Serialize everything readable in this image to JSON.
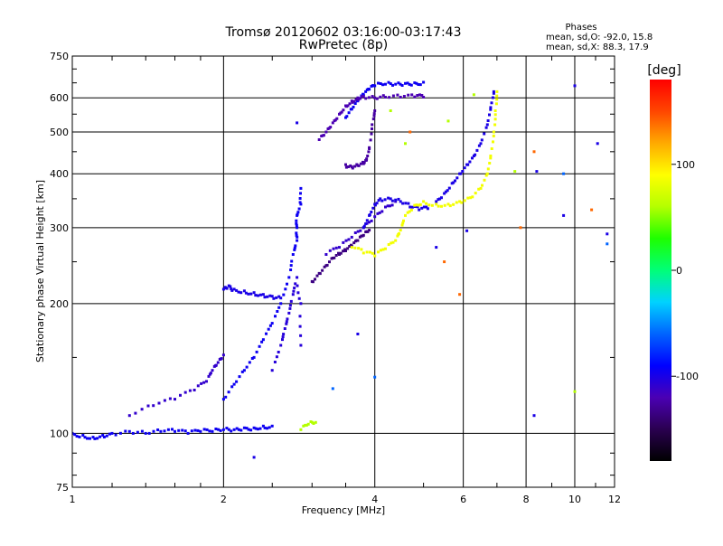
{
  "chart_data": {
    "type": "scatter",
    "title": "Tromsø 20120602 03:16:00-03:17:43",
    "subtitle": "RwPretec (8p)",
    "xlabel": "Frequency [MHz]",
    "ylabel": "Stationary phase Virtual Height [km]",
    "xscale": "log",
    "yscale": "log",
    "xlim": [
      1,
      12
    ],
    "ylim": [
      75,
      750
    ],
    "grid": true,
    "x_ticks": [
      {
        "value": 1,
        "label": "1"
      },
      {
        "value": 2,
        "label": "2"
      },
      {
        "value": 4,
        "label": "4"
      },
      {
        "value": 6,
        "label": "6"
      },
      {
        "value": 8,
        "label": "8"
      },
      {
        "value": 10,
        "label": "10"
      },
      {
        "value": 12,
        "label": "12"
      }
    ],
    "y_ticks": [
      {
        "value": 75,
        "label": "75"
      },
      {
        "value": 100,
        "label": "100"
      },
      {
        "value": 200,
        "label": "200"
      },
      {
        "value": 300,
        "label": "300"
      },
      {
        "value": 400,
        "label": "400"
      },
      {
        "value": 500,
        "label": "500"
      },
      {
        "value": 600,
        "label": "600"
      },
      {
        "value": 750,
        "label": "750"
      }
    ],
    "stats": {
      "header": "Phases",
      "line_o": "mean, sd,O: -92.0, 15.8",
      "line_x": "mean, sd,X:  88.3, 17.9"
    },
    "colorbar": {
      "label": "[deg]",
      "range": [
        -180,
        180
      ],
      "ticks": [
        {
          "value": 100,
          "label": "100"
        },
        {
          "value": 0,
          "label": "0"
        },
        {
          "value": -100,
          "label": "-100"
        }
      ],
      "colors": [
        "#000000",
        "#2a0050",
        "#4b00b4",
        "#0000ff",
        "#0064ff",
        "#00d2ff",
        "#00ff78",
        "#1eff00",
        "#b4ff00",
        "#ffff00",
        "#ffaa00",
        "#ff4600",
        "#ff0000"
      ]
    },
    "series": [
      {
        "phase": -95,
        "points": [
          [
            1.0,
            100
          ],
          [
            1.05,
            99
          ],
          [
            1.1,
            98
          ],
          [
            1.15,
            99
          ],
          [
            1.2,
            100
          ],
          [
            1.3,
            101
          ],
          [
            1.4,
            100
          ],
          [
            1.5,
            101
          ],
          [
            1.6,
            101
          ],
          [
            1.7,
            100
          ],
          [
            1.8,
            101
          ],
          [
            1.9,
            101
          ],
          [
            2.0,
            102
          ],
          [
            2.1,
            102
          ],
          [
            2.2,
            103
          ],
          [
            2.3,
            103
          ],
          [
            2.4,
            104
          ],
          [
            2.5,
            104
          ]
        ]
      },
      {
        "phase": -110,
        "points": [
          [
            1.3,
            110
          ],
          [
            1.45,
            116
          ],
          [
            1.6,
            120
          ],
          [
            1.75,
            126
          ],
          [
            1.85,
            132
          ],
          [
            1.9,
            140
          ],
          [
            1.95,
            146
          ],
          [
            2.0,
            152
          ]
        ]
      },
      {
        "phase": -100,
        "points": [
          [
            2.0,
            216
          ],
          [
            2.05,
            220
          ],
          [
            2.1,
            216
          ],
          [
            2.2,
            214
          ],
          [
            2.3,
            212
          ],
          [
            2.4,
            210
          ],
          [
            2.5,
            208
          ],
          [
            2.6,
            206
          ]
        ]
      },
      {
        "phase": -95,
        "points": [
          [
            2.0,
            120
          ],
          [
            2.1,
            130
          ],
          [
            2.2,
            140
          ],
          [
            2.3,
            150
          ],
          [
            2.4,
            165
          ],
          [
            2.5,
            180
          ],
          [
            2.6,
            200
          ],
          [
            2.7,
            230
          ],
          [
            2.75,
            260
          ],
          [
            2.8,
            280
          ],
          [
            2.8,
            300
          ],
          [
            2.8,
            320
          ],
          [
            2.85,
            340
          ],
          [
            2.85,
            370
          ]
        ]
      },
      {
        "phase": -105,
        "points": [
          [
            2.5,
            140
          ],
          [
            2.6,
            160
          ],
          [
            2.65,
            175
          ],
          [
            2.7,
            190
          ],
          [
            2.75,
            210
          ],
          [
            2.8,
            230
          ],
          [
            2.85,
            200
          ],
          [
            2.85,
            160
          ]
        ]
      },
      {
        "phase": -135,
        "points": [
          [
            3.0,
            225
          ],
          [
            3.1,
            235
          ],
          [
            3.2,
            245
          ],
          [
            3.3,
            255
          ],
          [
            3.4,
            260
          ],
          [
            3.5,
            265
          ],
          [
            3.6,
            272
          ],
          [
            3.7,
            280
          ],
          [
            3.8,
            288
          ],
          [
            3.9,
            296
          ]
        ]
      },
      {
        "phase": -110,
        "points": [
          [
            3.2,
            260
          ],
          [
            3.4,
            270
          ],
          [
            3.6,
            285
          ],
          [
            3.8,
            300
          ],
          [
            4.0,
            318
          ],
          [
            4.2,
            335
          ],
          [
            4.4,
            345
          ]
        ]
      },
      {
        "phase": -100,
        "points": [
          [
            3.8,
            300
          ],
          [
            3.9,
            320
          ],
          [
            4.0,
            340
          ],
          [
            4.1,
            350
          ],
          [
            4.3,
            350
          ],
          [
            4.5,
            345
          ],
          [
            4.7,
            335
          ],
          [
            4.9,
            330
          ],
          [
            5.1,
            332
          ]
        ]
      },
      {
        "phase": 85,
        "points": [
          [
            3.6,
            270
          ],
          [
            3.8,
            262
          ],
          [
            4.0,
            258
          ],
          [
            4.2,
            268
          ],
          [
            4.4,
            280
          ],
          [
            4.5,
            296
          ],
          [
            4.6,
            320
          ],
          [
            4.8,
            338
          ],
          [
            5.0,
            345
          ],
          [
            5.3,
            340
          ],
          [
            5.6,
            340
          ],
          [
            5.9,
            345
          ],
          [
            6.2,
            352
          ],
          [
            6.5,
            370
          ],
          [
            6.7,
            400
          ],
          [
            6.8,
            440
          ],
          [
            6.9,
            500
          ],
          [
            6.95,
            560
          ],
          [
            7.0,
            620
          ]
        ]
      },
      {
        "phase": -100,
        "points": [
          [
            5.3,
            345
          ],
          [
            5.5,
            360
          ],
          [
            5.7,
            380
          ],
          [
            5.9,
            400
          ],
          [
            6.1,
            420
          ],
          [
            6.3,
            440
          ],
          [
            6.5,
            470
          ],
          [
            6.7,
            520
          ],
          [
            6.8,
            570
          ],
          [
            6.9,
            620
          ]
        ]
      },
      {
        "phase": -95,
        "points": [
          [
            3.5,
            540
          ],
          [
            3.6,
            565
          ],
          [
            3.7,
            590
          ],
          [
            3.8,
            610
          ],
          [
            3.9,
            628
          ],
          [
            4.0,
            640
          ],
          [
            4.2,
            645
          ],
          [
            4.4,
            645
          ],
          [
            4.6,
            648
          ],
          [
            4.8,
            650
          ],
          [
            5.0,
            652
          ]
        ]
      },
      {
        "phase": -120,
        "points": [
          [
            3.1,
            480
          ],
          [
            3.2,
            500
          ],
          [
            3.3,
            525
          ],
          [
            3.4,
            550
          ],
          [
            3.5,
            575
          ],
          [
            3.6,
            590
          ],
          [
            3.7,
            600
          ],
          [
            3.8,
            605
          ],
          [
            4.0,
            600
          ],
          [
            4.2,
            602
          ],
          [
            4.5,
            602
          ],
          [
            4.8,
            603
          ],
          [
            5.0,
            602
          ]
        ]
      },
      {
        "phase": -125,
        "points": [
          [
            3.5,
            420
          ],
          [
            3.6,
            415
          ],
          [
            3.7,
            418
          ],
          [
            3.8,
            422
          ],
          [
            3.85,
            430
          ],
          [
            3.9,
            460
          ],
          [
            3.95,
            520
          ],
          [
            4.0,
            560
          ]
        ]
      },
      {
        "phase": 60,
        "points": [
          [
            2.85,
            102
          ],
          [
            2.95,
            105
          ],
          [
            3.05,
            106
          ]
        ]
      }
    ],
    "scatter_points": [
      {
        "phase": -100,
        "points": [
          [
            2.8,
            525
          ],
          [
            2.3,
            88
          ],
          [
            3.7,
            170
          ],
          [
            5.3,
            270
          ],
          [
            6.1,
            295
          ],
          [
            8.3,
            110
          ],
          [
            8.4,
            405
          ],
          [
            9.5,
            320
          ],
          [
            10.0,
            640
          ],
          [
            11.1,
            470
          ],
          [
            11.6,
            290
          ]
        ]
      },
      {
        "phase": -60,
        "points": [
          [
            3.3,
            127
          ],
          [
            4.0,
            135
          ],
          [
            9.5,
            400
          ],
          [
            11.6,
            275
          ]
        ]
      },
      {
        "phase": 60,
        "points": [
          [
            4.3,
            560
          ],
          [
            4.6,
            470
          ],
          [
            5.6,
            530
          ],
          [
            6.3,
            610
          ],
          [
            7.6,
            405
          ],
          [
            10.0,
            125
          ]
        ]
      },
      {
        "phase": 140,
        "points": [
          [
            4.7,
            500
          ],
          [
            5.5,
            250
          ],
          [
            5.9,
            210
          ],
          [
            7.8,
            300
          ],
          [
            8.3,
            450
          ],
          [
            10.8,
            330
          ]
        ]
      }
    ]
  }
}
